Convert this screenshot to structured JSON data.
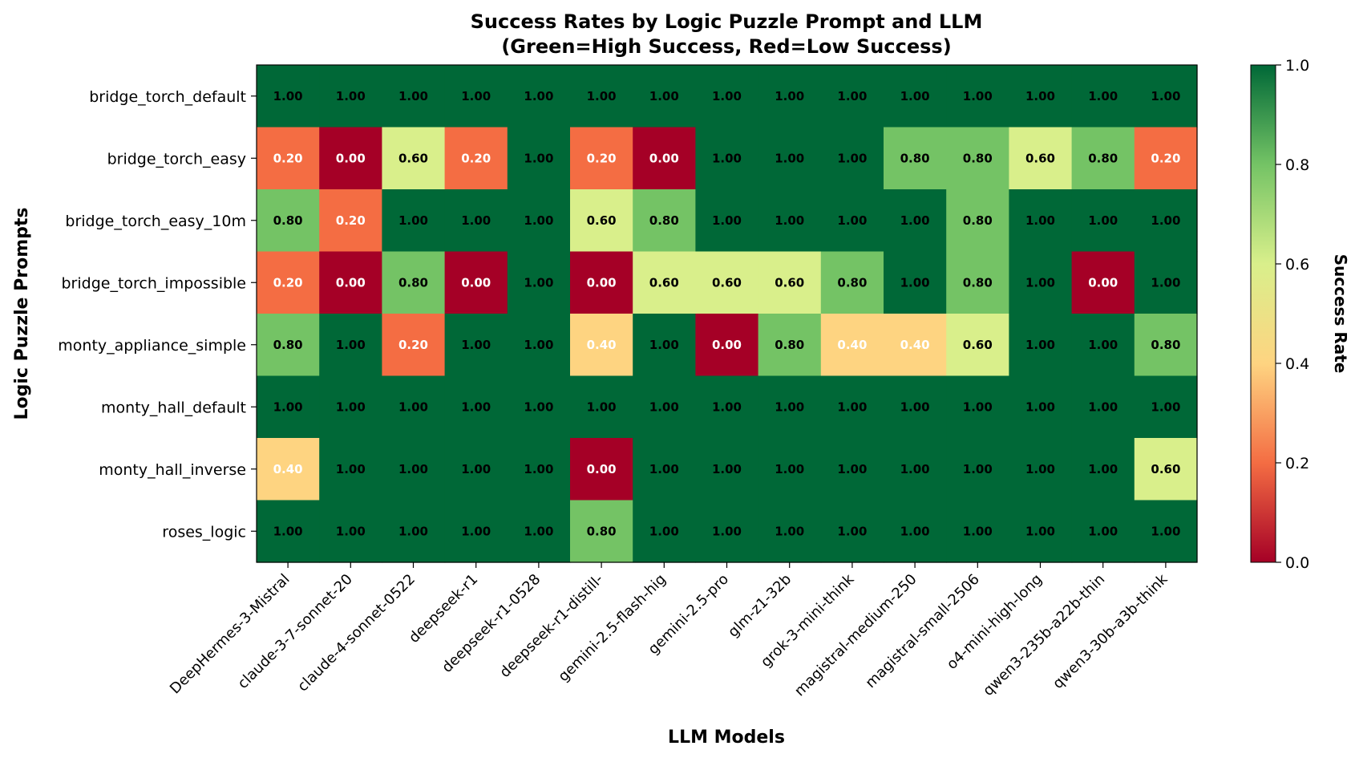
{
  "chart_data": {
    "type": "heatmap",
    "title": [
      "Success Rates by Logic Puzzle Prompt and LLM",
      "(Green=High Success, Red=Low Success)"
    ],
    "xlabel": "LLM Models",
    "ylabel": "Logic Puzzle Prompts",
    "colorbar_label": "Success Rate",
    "colorbar_ticks": [
      "0.0",
      "0.2",
      "0.4",
      "0.6",
      "0.8",
      "1.0"
    ],
    "vmin": 0,
    "vmax": 1,
    "colormap": "RdYlGn",
    "x": [
      "DeepHermes-3-Mistral",
      "claude-3-7-sonnet-20",
      "claude-4-sonnet-0522",
      "deepseek-r1",
      "deepseek-r1-0528",
      "deepseek-r1-distill-",
      "gemini-2.5-flash-hig",
      "gemini-2.5-pro",
      "glm-z1-32b",
      "grok-3-mini-think",
      "magistral-medium-250",
      "magistral-small-2506",
      "o4-mini-high-long",
      "qwen3-235b-a22b-thin",
      "qwen3-30b-a3b-think"
    ],
    "y": [
      "bridge_torch_default",
      "bridge_torch_easy",
      "bridge_torch_easy_10m",
      "bridge_torch_impossible",
      "monty_appliance_simple",
      "monty_hall_default",
      "monty_hall_inverse",
      "roses_logic"
    ],
    "values": [
      [
        1.0,
        1.0,
        1.0,
        1.0,
        1.0,
        1.0,
        1.0,
        1.0,
        1.0,
        1.0,
        1.0,
        1.0,
        1.0,
        1.0,
        1.0
      ],
      [
        0.2,
        0.0,
        0.6,
        0.2,
        1.0,
        0.2,
        0.0,
        1.0,
        1.0,
        1.0,
        0.8,
        0.8,
        0.6,
        0.8,
        0.2
      ],
      [
        0.8,
        0.2,
        1.0,
        1.0,
        1.0,
        0.6,
        0.8,
        1.0,
        1.0,
        1.0,
        1.0,
        0.8,
        1.0,
        1.0,
        1.0
      ],
      [
        0.2,
        0.0,
        0.8,
        0.0,
        1.0,
        0.0,
        0.6,
        0.6,
        0.6,
        0.8,
        1.0,
        0.8,
        1.0,
        0.0,
        1.0
      ],
      [
        0.8,
        1.0,
        0.2,
        1.0,
        1.0,
        0.4,
        1.0,
        0.0,
        0.8,
        0.4,
        0.4,
        0.6,
        1.0,
        1.0,
        0.8
      ],
      [
        1.0,
        1.0,
        1.0,
        1.0,
        1.0,
        1.0,
        1.0,
        1.0,
        1.0,
        1.0,
        1.0,
        1.0,
        1.0,
        1.0,
        1.0
      ],
      [
        0.4,
        1.0,
        1.0,
        1.0,
        1.0,
        0.0,
        1.0,
        1.0,
        1.0,
        1.0,
        1.0,
        1.0,
        1.0,
        1.0,
        0.6
      ],
      [
        1.0,
        1.0,
        1.0,
        1.0,
        1.0,
        0.8,
        1.0,
        1.0,
        1.0,
        1.0,
        1.0,
        1.0,
        1.0,
        1.0,
        1.0
      ]
    ],
    "color_stops": [
      {
        "v": 0.0,
        "color": "#a50026"
      },
      {
        "v": 0.2,
        "color": "#f46d43"
      },
      {
        "v": 0.4,
        "color": "#fed481"
      },
      {
        "v": 0.6,
        "color": "#d9ef8b"
      },
      {
        "v": 0.8,
        "color": "#74c365"
      },
      {
        "v": 1.0,
        "color": "#006837"
      }
    ]
  }
}
